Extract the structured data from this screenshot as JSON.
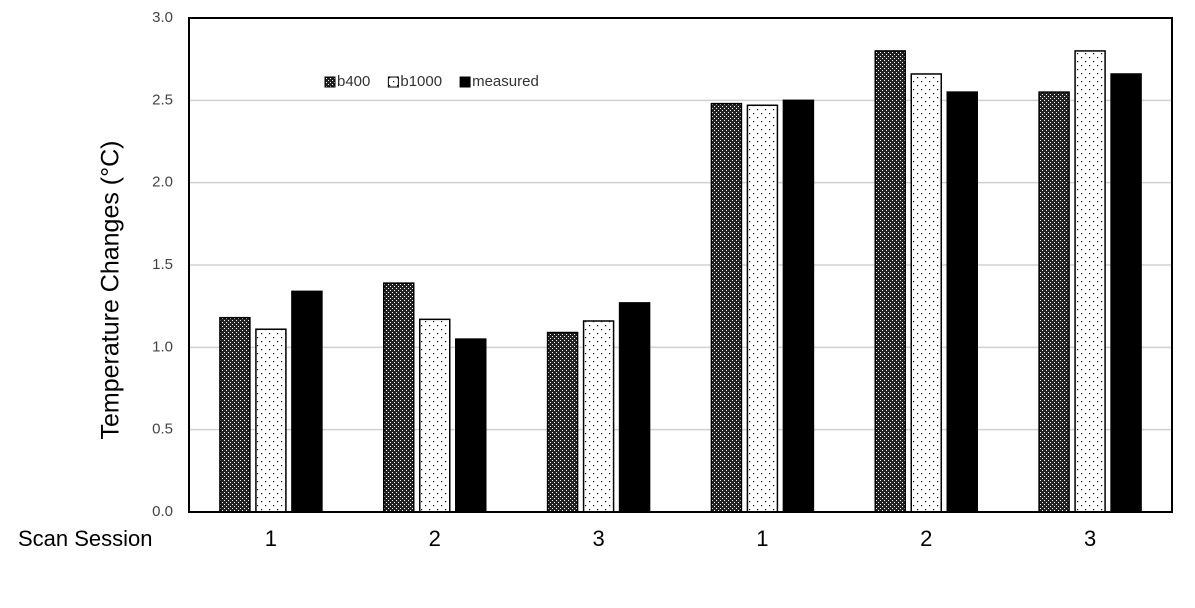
{
  "chart_data": {
    "type": "bar",
    "y_label": "Temperature Changes (°C)",
    "x_label": "Scan Session",
    "categories": [
      "1",
      "2",
      "3",
      "1",
      "2",
      "3"
    ],
    "series": [
      {
        "name": "b400",
        "color": "#000000",
        "fill": "crosshatch",
        "values": [
          1.18,
          1.39,
          1.09,
          2.48,
          2.8,
          2.55
        ]
      },
      {
        "name": "b1000",
        "color": "#000000",
        "fill": "dots",
        "values": [
          1.11,
          1.17,
          1.16,
          2.47,
          2.66,
          2.8
        ]
      },
      {
        "name": "measured",
        "color": "#000000",
        "fill": "solid",
        "values": [
          1.34,
          1.05,
          1.27,
          2.5,
          2.55,
          2.66
        ]
      }
    ],
    "ylim": [
      0,
      3
    ],
    "yticks": [
      {
        "value": 0,
        "label": "0.0"
      },
      0.5,
      {
        "value": 1,
        "label": "1.0"
      },
      1.5,
      {
        "value": 2,
        "label": "2.0"
      },
      2.5,
      {
        "value": 3,
        "label": "3.0"
      }
    ],
    "grid": true
  }
}
